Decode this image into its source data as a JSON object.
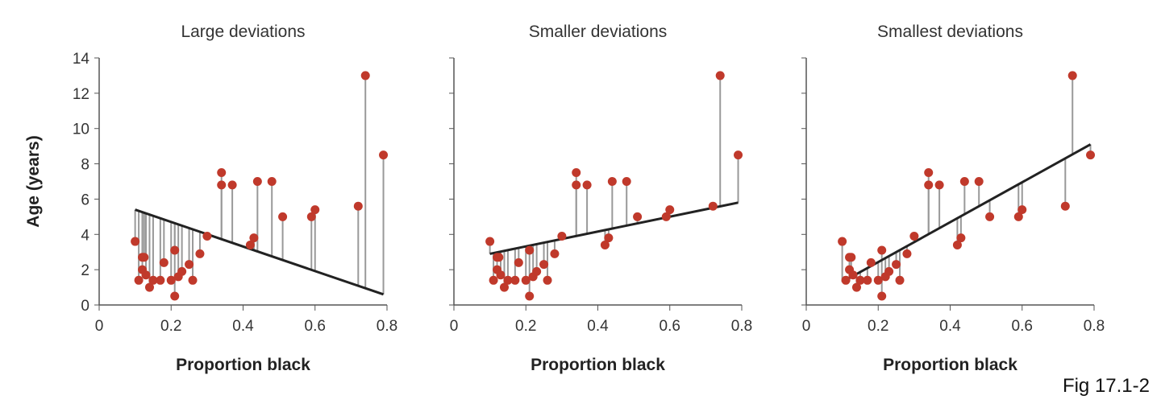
{
  "figure_label": "Fig 17.1-2",
  "chart_data": [
    {
      "type": "scatter",
      "title": "Large deviations",
      "xlabel": "Proportion black",
      "ylabel": "Age (years)",
      "xlim": [
        0,
        0.8
      ],
      "ylim": [
        0,
        14
      ],
      "xticks": [
        "0",
        "0.2",
        "0.4",
        "0.6",
        "0.8"
      ],
      "yticks": [
        "0",
        "2",
        "4",
        "6",
        "8",
        "10",
        "12",
        "14"
      ],
      "line": [
        [
          0.1,
          5.4
        ],
        [
          0.79,
          0.6
        ]
      ]
    },
    {
      "type": "scatter",
      "title": "Smaller deviations",
      "xlabel": "Proportion black",
      "xlim": [
        0,
        0.8
      ],
      "ylim": [
        0,
        14
      ],
      "xticks": [
        "0",
        "0.2",
        "0.4",
        "0.6",
        "0.8"
      ],
      "line": [
        [
          0.1,
          2.9
        ],
        [
          0.79,
          5.8
        ]
      ]
    },
    {
      "type": "scatter",
      "title": "Smallest deviations",
      "xlabel": "Proportion black",
      "xlim": [
        0,
        0.8
      ],
      "ylim": [
        0,
        14
      ],
      "xticks": [
        "0",
        "0.2",
        "0.4",
        "0.6",
        "0.8"
      ],
      "line": [
        [
          0.1,
          1.3
        ],
        [
          0.79,
          9.1
        ]
      ]
    }
  ],
  "points": [
    [
      0.1,
      3.6
    ],
    [
      0.11,
      1.4
    ],
    [
      0.12,
      2.7
    ],
    [
      0.125,
      2.7
    ],
    [
      0.12,
      2.0
    ],
    [
      0.13,
      1.7
    ],
    [
      0.14,
      1.0
    ],
    [
      0.15,
      1.4
    ],
    [
      0.17,
      1.4
    ],
    [
      0.18,
      2.4
    ],
    [
      0.2,
      1.4
    ],
    [
      0.21,
      3.1
    ],
    [
      0.21,
      0.5
    ],
    [
      0.22,
      1.6
    ],
    [
      0.23,
      1.9
    ],
    [
      0.25,
      2.3
    ],
    [
      0.26,
      1.4
    ],
    [
      0.28,
      2.9
    ],
    [
      0.3,
      3.9
    ],
    [
      0.34,
      7.5
    ],
    [
      0.34,
      6.8
    ],
    [
      0.37,
      6.8
    ],
    [
      0.42,
      3.4
    ],
    [
      0.43,
      3.8
    ],
    [
      0.44,
      7.0
    ],
    [
      0.48,
      7.0
    ],
    [
      0.51,
      5.0
    ],
    [
      0.59,
      5.0
    ],
    [
      0.6,
      5.4
    ],
    [
      0.72,
      5.6
    ],
    [
      0.74,
      13.0
    ],
    [
      0.79,
      8.5
    ]
  ],
  "colors": {
    "point": "#c0392b",
    "residual": "#999999",
    "line": "#222222",
    "axis": "#555555"
  }
}
